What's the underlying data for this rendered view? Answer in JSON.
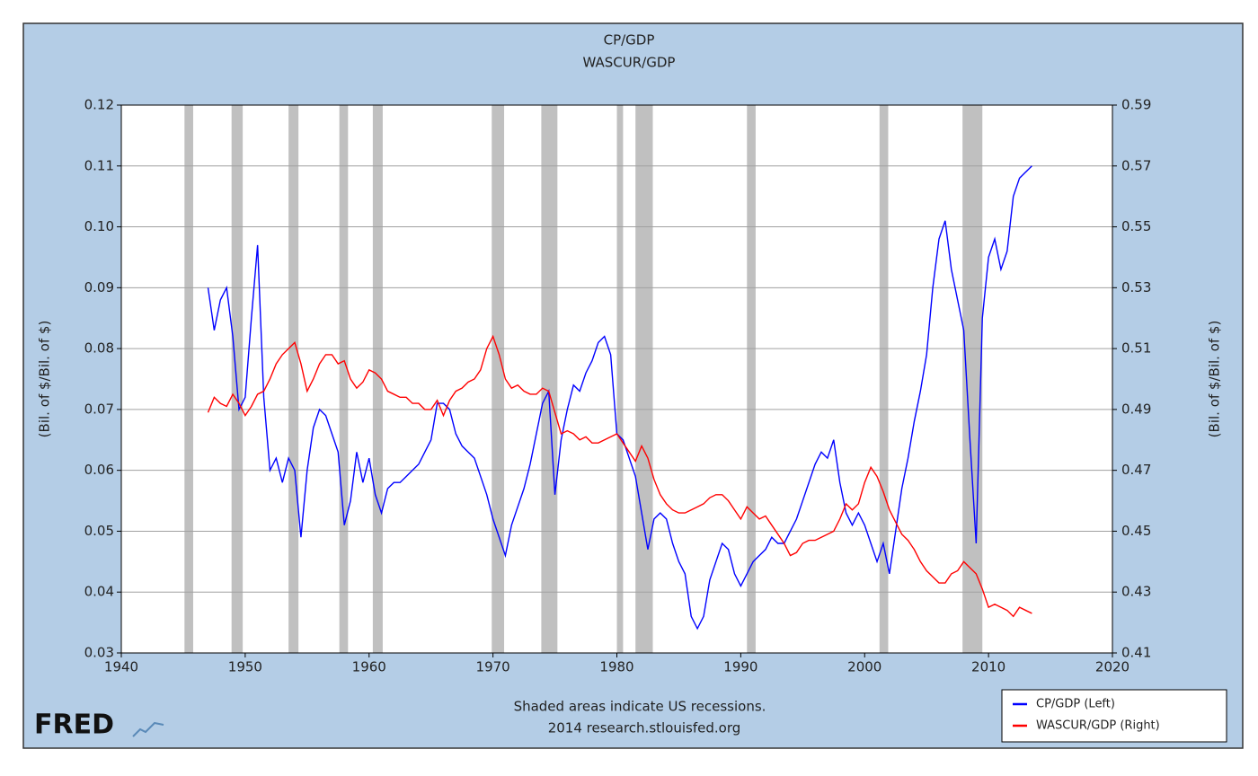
{
  "chart_data": {
    "type": "line",
    "title": "CP/GDP",
    "subtitle": "WASCUR/GDP",
    "y_label": "(Bil. of $/Bil. of $)",
    "y2_label": "(Bil. of $/Bil. of $)",
    "note": "Shaded areas indicate US recessions.",
    "source": "2014 research.stlouisfed.org",
    "logo": "FRED",
    "legend": "lower right",
    "grid": true,
    "recession_color": "#c0c0c0",
    "recessions": [
      [
        1945.1,
        1945.8
      ],
      [
        1948.9,
        1949.8
      ],
      [
        1953.5,
        1954.3
      ],
      [
        1957.6,
        1958.3
      ],
      [
        1960.3,
        1961.1
      ],
      [
        1969.9,
        1970.9
      ],
      [
        1973.9,
        1975.2
      ],
      [
        1980.0,
        1980.5
      ],
      [
        1981.5,
        1982.9
      ],
      [
        1990.5,
        1991.2
      ],
      [
        2001.2,
        2001.9
      ],
      [
        2007.9,
        2009.5
      ]
    ],
    "xlim": [
      1940,
      2020
    ],
    "xticks": [
      1940,
      1950,
      1960,
      1970,
      1980,
      1990,
      2000,
      2010,
      2020
    ],
    "ylim": [
      0.03,
      0.12
    ],
    "yticks": [
      0.03,
      0.04,
      0.05,
      0.06,
      0.07,
      0.08,
      0.09,
      {
        "value": 0.1,
        "label": "0.10"
      },
      0.11,
      0.12
    ],
    "y2lim": [
      0.41,
      0.59
    ],
    "y2ticks": [
      0.41,
      0.43,
      0.45,
      0.47,
      0.49,
      0.51,
      0.53,
      0.55,
      0.57,
      0.59
    ],
    "x": [
      1947,
      1947.5,
      1948,
      1948.5,
      1949,
      1949.5,
      1950,
      1950.5,
      1951,
      1951.5,
      1952,
      1952.5,
      1953,
      1953.5,
      1954,
      1954.5,
      1955,
      1955.5,
      1956,
      1956.5,
      1957,
      1957.5,
      1958,
      1958.5,
      1959,
      1959.5,
      1960,
      1960.5,
      1961,
      1961.5,
      1962,
      1962.5,
      1963,
      1963.5,
      1964,
      1964.5,
      1965,
      1965.5,
      1966,
      1966.5,
      1967,
      1967.5,
      1968,
      1968.5,
      1969,
      1969.5,
      1970,
      1970.5,
      1971,
      1971.5,
      1972,
      1972.5,
      1973,
      1973.5,
      1974,
      1974.5,
      1975,
      1975.5,
      1976,
      1976.5,
      1977,
      1977.5,
      1978,
      1978.5,
      1979,
      1979.5,
      1980,
      1980.5,
      1981,
      1981.5,
      1982,
      1982.5,
      1983,
      1983.5,
      1984,
      1984.5,
      1985,
      1985.5,
      1986,
      1986.5,
      1987,
      1987.5,
      1988,
      1988.5,
      1989,
      1989.5,
      1990,
      1990.5,
      1991,
      1991.5,
      1992,
      1992.5,
      1993,
      1993.5,
      1994,
      1994.5,
      1995,
      1995.5,
      1996,
      1996.5,
      1997,
      1997.5,
      1998,
      1998.5,
      1999,
      1999.5,
      2000,
      2000.5,
      2001,
      2001.5,
      2002,
      2002.5,
      2003,
      2003.5,
      2004,
      2004.5,
      2005,
      2005.5,
      2006,
      2006.5,
      2007,
      2007.5,
      2008,
      2008.5,
      2009,
      2009.5,
      2010,
      2010.5,
      2011,
      2011.5,
      2012,
      2012.5,
      2013,
      2013.5
    ],
    "series": [
      {
        "name": "CP/GDP (Left)",
        "color": "#0000ff",
        "axis": "y",
        "values": [
          0.09,
          0.083,
          0.088,
          0.09,
          0.082,
          0.07,
          0.072,
          0.085,
          0.097,
          0.072,
          0.06,
          0.062,
          0.058,
          0.062,
          0.06,
          0.049,
          0.06,
          0.067,
          0.07,
          0.069,
          0.066,
          0.063,
          0.051,
          0.055,
          0.063,
          0.058,
          0.062,
          0.056,
          0.053,
          0.057,
          0.058,
          0.058,
          0.059,
          0.06,
          0.061,
          0.063,
          0.065,
          0.071,
          0.071,
          0.07,
          0.066,
          0.064,
          0.063,
          0.062,
          0.059,
          0.056,
          0.052,
          0.049,
          0.046,
          0.051,
          0.054,
          0.057,
          0.061,
          0.066,
          0.071,
          0.073,
          0.056,
          0.065,
          0.07,
          0.074,
          0.073,
          0.076,
          0.078,
          0.081,
          0.082,
          0.079,
          0.066,
          0.065,
          0.062,
          0.059,
          0.053,
          0.047,
          0.052,
          0.053,
          0.052,
          0.048,
          0.045,
          0.043,
          0.036,
          0.034,
          0.036,
          0.042,
          0.045,
          0.048,
          0.047,
          0.043,
          0.041,
          0.043,
          0.045,
          0.046,
          0.047,
          0.049,
          0.048,
          0.048,
          0.05,
          0.052,
          0.055,
          0.058,
          0.061,
          0.063,
          0.062,
          0.065,
          0.058,
          0.053,
          0.051,
          0.053,
          0.051,
          0.048,
          0.045,
          0.048,
          0.043,
          0.05,
          0.057,
          0.062,
          0.068,
          0.073,
          0.079,
          0.09,
          0.098,
          0.101,
          0.093,
          0.088,
          0.083,
          0.065,
          0.048,
          0.085,
          0.095,
          0.098,
          0.093,
          0.096,
          0.105,
          0.108,
          0.109,
          0.11
        ]
      },
      {
        "name": "WASCUR/GDP (Right)",
        "color": "#ff0000",
        "axis": "y2",
        "values": [
          0.489,
          0.494,
          0.492,
          0.491,
          0.495,
          0.492,
          0.488,
          0.491,
          0.495,
          0.496,
          0.5,
          0.505,
          0.508,
          0.51,
          0.512,
          0.505,
          0.496,
          0.5,
          0.505,
          0.508,
          0.508,
          0.505,
          0.506,
          0.5,
          0.497,
          0.499,
          0.503,
          0.502,
          0.5,
          0.496,
          0.495,
          0.494,
          0.494,
          0.492,
          0.492,
          0.49,
          0.49,
          0.493,
          0.488,
          0.493,
          0.496,
          0.497,
          0.499,
          0.5,
          0.503,
          0.51,
          0.514,
          0.508,
          0.5,
          0.497,
          0.498,
          0.496,
          0.495,
          0.495,
          0.497,
          0.496,
          0.489,
          0.482,
          0.483,
          0.482,
          0.48,
          0.481,
          0.479,
          0.479,
          0.48,
          0.481,
          0.482,
          0.479,
          0.476,
          0.473,
          0.478,
          0.474,
          0.467,
          0.462,
          0.459,
          0.457,
          0.456,
          0.456,
          0.457,
          0.458,
          0.459,
          0.461,
          0.462,
          0.462,
          0.46,
          0.457,
          0.454,
          0.458,
          0.456,
          0.454,
          0.455,
          0.452,
          0.449,
          0.446,
          0.442,
          0.443,
          0.446,
          0.447,
          0.447,
          0.448,
          0.449,
          0.45,
          0.454,
          0.459,
          0.457,
          0.459,
          0.466,
          0.471,
          0.468,
          0.463,
          0.457,
          0.453,
          0.449,
          0.447,
          0.444,
          0.44,
          0.437,
          0.435,
          0.433,
          0.433,
          0.436,
          0.437,
          0.44,
          0.438,
          0.436,
          0.431,
          0.425,
          0.426,
          0.425,
          0.424,
          0.422,
          0.425,
          0.424,
          0.423
        ]
      }
    ]
  }
}
